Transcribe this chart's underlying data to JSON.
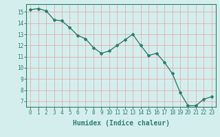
{
  "x": [
    0,
    1,
    2,
    3,
    4,
    5,
    6,
    7,
    8,
    9,
    10,
    11,
    12,
    13,
    14,
    15,
    16,
    17,
    18,
    19,
    20,
    21,
    22,
    23
  ],
  "y": [
    15.2,
    15.3,
    15.1,
    14.3,
    14.2,
    13.6,
    12.9,
    12.6,
    11.8,
    11.3,
    11.5,
    12.0,
    12.5,
    13.0,
    12.0,
    11.1,
    11.3,
    10.5,
    9.5,
    7.8,
    6.6,
    6.6,
    7.2,
    7.4
  ],
  "line_color": "#2e7d6e",
  "marker": "D",
  "marker_size": 2.0,
  "line_width": 1.0,
  "xlabel": "Humidex (Indice chaleur)",
  "xlabel_fontsize": 7,
  "xlabel_weight": "bold",
  "xlim": [
    -0.5,
    23.5
  ],
  "ylim": [
    6.5,
    15.7
  ],
  "yticks": [
    7,
    8,
    9,
    10,
    11,
    12,
    13,
    14,
    15
  ],
  "xticks": [
    0,
    1,
    2,
    3,
    4,
    5,
    6,
    7,
    8,
    9,
    10,
    11,
    12,
    13,
    14,
    15,
    16,
    17,
    18,
    19,
    20,
    21,
    22,
    23
  ],
  "xtick_labels": [
    "0",
    "1",
    "2",
    "3",
    "4",
    "5",
    "6",
    "7",
    "8",
    "9",
    "10",
    "11",
    "12",
    "13",
    "14",
    "15",
    "16",
    "17",
    "18",
    "19",
    "20",
    "21",
    "22",
    "23"
  ],
  "bg_color": "#d4eeee",
  "grid_color": "#e8a0a0",
  "tick_fontsize": 5.5,
  "spine_color": "#2e7d6e"
}
